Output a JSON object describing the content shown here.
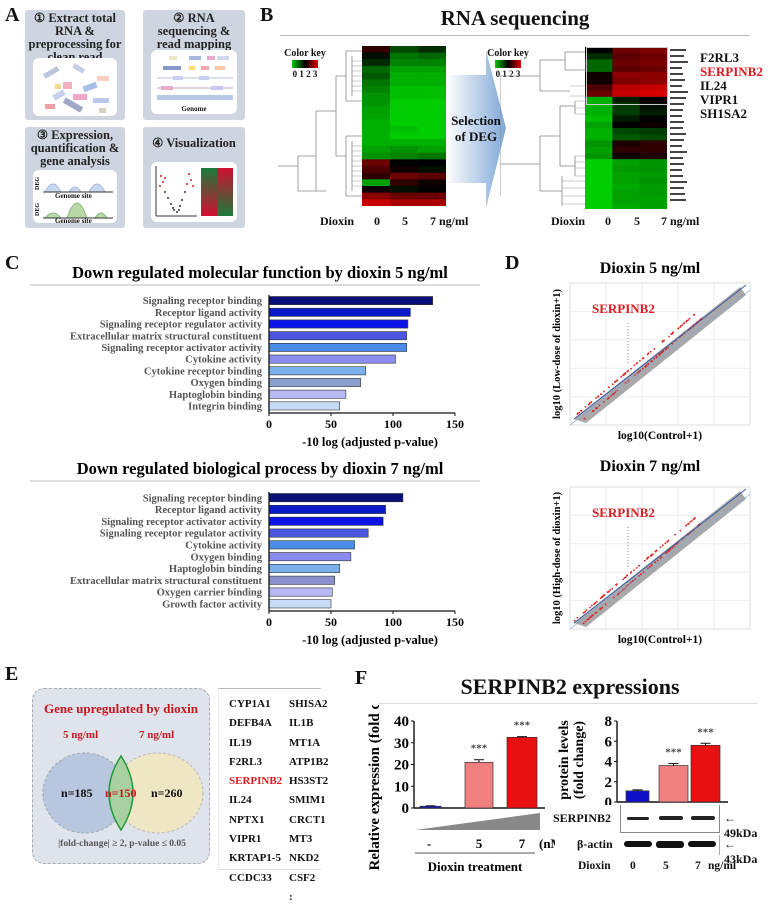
{
  "panels": {
    "a": "A",
    "b": "B",
    "c": "C",
    "d": "D",
    "e": "E",
    "f": "F"
  },
  "panel_a": {
    "steps": [
      {
        "title": "① Extract total RNA & preprocessing for clean read"
      },
      {
        "title": "② RNA sequencing & read mapping",
        "caption": "Genome"
      },
      {
        "title": "③ Expression, quantification & gene analysis",
        "axis_label": "DEG",
        "caption": "Genome site"
      },
      {
        "title": "④ Visualization"
      }
    ]
  },
  "panel_b": {
    "title": "RNA sequencing",
    "color_key": {
      "label": "Color key",
      "ticks": "0 1 2 3",
      "low": "#00c800",
      "mid": "#000000",
      "high": "#e00000"
    },
    "arrow_label_1": "Selection",
    "arrow_label_2": "of DEG",
    "dioxin_label": "Dioxin",
    "doses": [
      "0",
      "5",
      "7 ng/ml"
    ],
    "highlight_genes": [
      {
        "name": "F2RL3",
        "color": "#111111"
      },
      {
        "name": "SERPINB2",
        "color": "#e0191f"
      },
      {
        "name": "IL24",
        "color": "#111111"
      },
      {
        "name": "VIPR1",
        "color": "#111111"
      },
      {
        "name": "SH1SA2",
        "color": "#111111"
      }
    ],
    "heatmap_all": [
      [
        1.8,
        1,
        1.2
      ],
      [
        1.4,
        0.7,
        0.8
      ],
      [
        1.2,
        0.6,
        0.6
      ],
      [
        0.8,
        0.4,
        0.4
      ],
      [
        0.9,
        0.3,
        0.3
      ],
      [
        0.7,
        0.3,
        0.3
      ],
      [
        0.6,
        0.2,
        0.2
      ],
      [
        0.5,
        0.2,
        0.2
      ],
      [
        0.5,
        0.1,
        0.1
      ],
      [
        0.4,
        0.1,
        0.1
      ],
      [
        0.4,
        0.1,
        0.1
      ],
      [
        0.3,
        0.1,
        0.1
      ],
      [
        0.3,
        0.2,
        0.1
      ],
      [
        0.3,
        0.1,
        0.1
      ],
      [
        0.3,
        0.3,
        0.3
      ],
      [
        0.4,
        0.5,
        0.4
      ],
      [
        0.5,
        0.6,
        0.7
      ],
      [
        2.2,
        1.5,
        1.5
      ],
      [
        2.0,
        1.6,
        1.4
      ],
      [
        1.8,
        2.2,
        2.1
      ],
      [
        0.4,
        1.8,
        1.6
      ],
      [
        1.6,
        1.4,
        1.5
      ],
      [
        2.4,
        2.2,
        2.2
      ],
      [
        2.8,
        2.6,
        2.6
      ]
    ],
    "heatmap_deg": [
      [
        1.5,
        2.2,
        2.3
      ],
      [
        1.2,
        2.1,
        2.2
      ],
      [
        0.8,
        2.2,
        2.3
      ],
      [
        0.8,
        2.1,
        2.2
      ],
      [
        1.6,
        2.4,
        2.4
      ],
      [
        1.6,
        2.3,
        2.4
      ],
      [
        2.0,
        2.7,
        2.8
      ],
      [
        2.2,
        2.8,
        2.9
      ],
      [
        0.3,
        1.3,
        1.5
      ],
      [
        0.3,
        1.1,
        1.4
      ],
      [
        0.3,
        1.1,
        1.3
      ],
      [
        0.2,
        1.3,
        1.5
      ],
      [
        0.4,
        1.5,
        1.6
      ],
      [
        0.3,
        1.0,
        1.1
      ],
      [
        0.3,
        0.9,
        1.0
      ],
      [
        0.5,
        1.7,
        1.8
      ],
      [
        0.4,
        1.8,
        1.8
      ],
      [
        0.5,
        1.6,
        1.7
      ],
      [
        0.1,
        0.4,
        0.5
      ],
      [
        0.1,
        0.45,
        0.5
      ],
      [
        0.1,
        0.4,
        0.45
      ],
      [
        0.1,
        0.4,
        0.5
      ],
      [
        0.1,
        0.35,
        0.45
      ],
      [
        0.1,
        0.4,
        0.45
      ],
      [
        0.1,
        0.4,
        0.4
      ],
      [
        0.1,
        0.35,
        0.4
      ]
    ]
  },
  "chart_data": [
    {
      "type": "bar",
      "orientation": "horizontal",
      "title": "Down regulated molecular function by dioxin 5 ng/ml",
      "xlabel": "-10 log (adjusted p-value)",
      "xlim": [
        0,
        150
      ],
      "xticks": [
        "0",
        "50",
        "100",
        "150"
      ],
      "categories": [
        "Signaling receptor binding",
        "Receptor ligand activity",
        "Signaling receptor regulator activity",
        "Extracellular matrix structural constituent",
        "Signaling receptor activator activity",
        "Cytokine activity",
        "Cytokine receptor binding",
        "Oxygen binding",
        "Haptoglobin binding",
        "Integrin binding"
      ],
      "values": [
        132,
        114,
        112,
        111,
        111,
        102,
        78,
        74,
        62,
        57
      ],
      "colors": [
        "#0a0f78",
        "#0a1ac8",
        "#0a14e6",
        "#4a55e0",
        "#4a8ce8",
        "#8a8cf0",
        "#7ab0ec",
        "#8aa0cc",
        "#b8b8f4",
        "#c6dcf6"
      ]
    },
    {
      "type": "bar",
      "orientation": "horizontal",
      "title": "Down regulated biological process by dioxin 7 ng/ml",
      "xlabel": "-10 log (adjusted p-value)",
      "xlim": [
        0,
        150
      ],
      "xticks": [
        "0",
        "50",
        "100",
        "150"
      ],
      "categories": [
        "Signaling receptor binding",
        "Receptor ligand activity",
        "Signaling receptor activator activity",
        "Signaling receptor regulator activity",
        "Cytokine activity",
        "Oxygen binding",
        "Haptoglobin binding",
        "Extracellular matrix structural constituent",
        "Oxygen carrier binding",
        "Growth factor activity"
      ],
      "values": [
        108,
        94,
        92,
        80,
        69,
        66,
        57,
        53,
        51,
        50
      ],
      "colors": [
        "#0a0f78",
        "#0a1ac8",
        "#0a14e6",
        "#4a55e0",
        "#4a8ce8",
        "#8a8cf0",
        "#7ab0ec",
        "#8a90cc",
        "#b8b8f4",
        "#c6dcf6"
      ]
    },
    {
      "type": "bar",
      "ylabel": "Relative expression (fold change)",
      "ylim": [
        0,
        40
      ],
      "yticks": [
        "0",
        "10",
        "20",
        "30",
        "40"
      ],
      "categories": [
        "-",
        "5",
        "7"
      ],
      "unit": "(nM)",
      "xlabel": "Dioxin treatment",
      "values": [
        0.8,
        21,
        32.5
      ],
      "errors": [
        0.2,
        1.2,
        0.3
      ],
      "significance": [
        "",
        "***",
        "***"
      ],
      "colors": [
        "#1010c8",
        "#f08080",
        "#e81010"
      ]
    },
    {
      "type": "bar",
      "ylabel": "Relative protein levels (fold change)",
      "ylim": [
        0,
        8
      ],
      "yticks": [
        "0",
        "2",
        "4",
        "6",
        "8"
      ],
      "categories": [
        "0",
        "5",
        "7"
      ],
      "values": [
        1.1,
        3.6,
        5.6
      ],
      "errors": [
        0.1,
        0.2,
        0.2
      ],
      "significance": [
        "",
        "***",
        "***"
      ],
      "colors": [
        "#1010c8",
        "#f08080",
        "#e81010"
      ]
    }
  ],
  "panel_d": {
    "plots": [
      {
        "title": "Dioxin 5 ng/ml",
        "ylabel": "log10 (Low-dose of dioxin+1)",
        "xlabel": "log10(Control+1)",
        "gene": "SERPINB2"
      },
      {
        "title": "Dioxin 7 ng/ml",
        "ylabel": "log10 (High-dose of dioxin+1)",
        "xlabel": "log10(Control+1)",
        "gene": "SERPINB2"
      }
    ]
  },
  "panel_e": {
    "title": "Gene upregulated by dioxin",
    "set_a": "5 ng/ml",
    "set_b": "7 ng/ml",
    "only_a": "n=185",
    "overlap": "n=150",
    "only_b": "n=260",
    "criteria": "|fold-change| ≥ 2, p-value ≤ 0.05",
    "genes_col1": [
      "CYP1A1",
      "DEFB4A",
      "IL19",
      "F2RL3",
      "SERPINB2",
      "IL24",
      "NPTX1",
      "VIPR1",
      "KRTAP1-5",
      "CCDC33"
    ],
    "genes_col2": [
      "SHISA2",
      "IL1B",
      "MT1A",
      "ATP1B2",
      "HS3ST2",
      "SMIM1",
      "CRCT1",
      "MT3",
      "NKD2",
      "CSF2",
      ":"
    ],
    "highlight_gene": "SERPINB2"
  },
  "panel_f": {
    "title": "SERPINB2 expressions",
    "blot_rows": [
      {
        "label": "SERPINB2",
        "size": "← 49kDa"
      },
      {
        "label": "β-actin",
        "size": "← 43kDa"
      }
    ],
    "dioxin_label": "Dioxin",
    "doses": [
      "0",
      "5",
      "7"
    ],
    "dose_unit": "ng/ml"
  }
}
